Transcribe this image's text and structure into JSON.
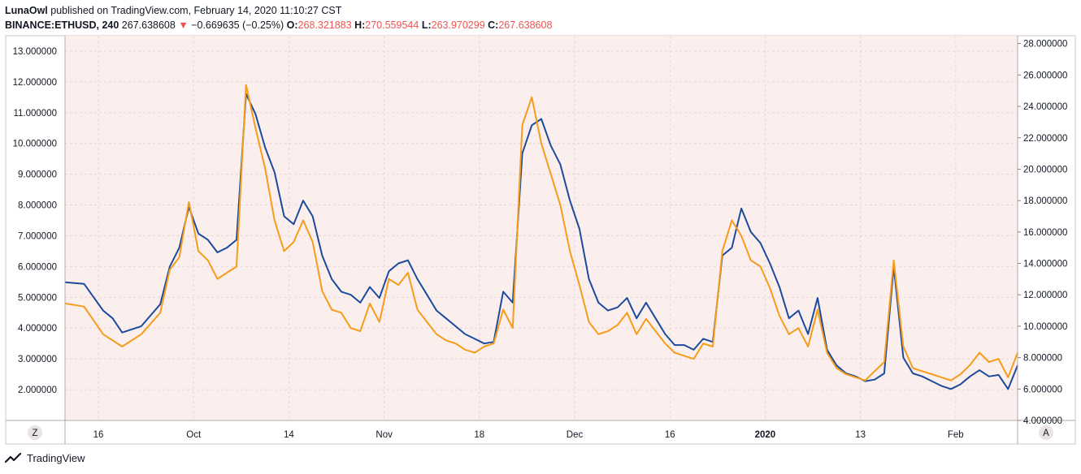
{
  "header": {
    "publisher": "LunaOwl",
    "published_text": "published on TradingView.com, February 14, 2020 11:10:27 CST",
    "symbol": "BINANCE:ETHUSD, 240",
    "last": "267.638608",
    "change_arrow": "▼",
    "change": "−0.669635 (−0.25%)",
    "o_label": "O:",
    "o": "268.321883",
    "h_label": "H:",
    "h": "270.559544",
    "l_label": "L:",
    "l": "263.970299",
    "c_label": "C:",
    "c": "267.638608"
  },
  "footer": {
    "brand": "TradingView"
  },
  "corner": {
    "left": "Z",
    "right": "A"
  },
  "colors": {
    "background": "#fbefee",
    "blue_series": "#1c4a9c",
    "orange_series": "#f59c1a",
    "grid": "#e8d6d6",
    "change_red": "#ef5350"
  },
  "chart_data": {
    "type": "line",
    "title": "",
    "xlabel": "",
    "ylabel": "",
    "x_ticks": [
      "16",
      "Oct",
      "14",
      "Nov",
      "18",
      "Dec",
      "16",
      "2020",
      "13",
      "Feb"
    ],
    "x_ticks_bold": [
      "2020"
    ],
    "left_axis": {
      "ylim": [
        1.0,
        13.5
      ],
      "ticks": [
        "2.000000",
        "3.000000",
        "4.000000",
        "5.000000",
        "6.000000",
        "7.000000",
        "8.000000",
        "9.000000",
        "10.000000",
        "11.000000",
        "12.000000",
        "13.000000"
      ]
    },
    "right_axis": {
      "ylim": [
        4.0,
        28.5
      ],
      "ticks": [
        "4.000000",
        "6.000000",
        "8.000000",
        "10.000000",
        "12.000000",
        "14.000000",
        "16.000000",
        "18.000000",
        "20.000000",
        "22.000000",
        "24.000000",
        "26.000000",
        "28.000000"
      ]
    },
    "grid": true,
    "x_range": [
      0,
      100
    ],
    "series": [
      {
        "axis": "right",
        "color": "#1c4a9c",
        "points": [
          [
            0,
            12.8
          ],
          [
            2,
            12.7
          ],
          [
            4,
            11.0
          ],
          [
            5,
            10.5
          ],
          [
            6,
            9.6
          ],
          [
            8,
            10.0
          ],
          [
            10,
            11.4
          ],
          [
            11,
            13.8
          ],
          [
            12,
            15.0
          ],
          [
            13,
            17.6
          ],
          [
            14,
            15.9
          ],
          [
            15,
            15.5
          ],
          [
            16,
            14.7
          ],
          [
            17,
            15.0
          ],
          [
            18,
            15.5
          ],
          [
            19,
            24.8
          ],
          [
            20,
            23.5
          ],
          [
            21,
            21.4
          ],
          [
            22,
            19.8
          ],
          [
            23,
            17.0
          ],
          [
            24,
            16.5
          ],
          [
            25,
            18.0
          ],
          [
            26,
            17.0
          ],
          [
            27,
            14.5
          ],
          [
            28,
            13.0
          ],
          [
            29,
            12.2
          ],
          [
            30,
            12.0
          ],
          [
            31,
            11.5
          ],
          [
            32,
            12.5
          ],
          [
            33,
            11.8
          ],
          [
            34,
            13.5
          ],
          [
            35,
            14.0
          ],
          [
            36,
            14.2
          ],
          [
            37,
            13.0
          ],
          [
            38,
            12.0
          ],
          [
            39,
            11.0
          ],
          [
            40,
            10.5
          ],
          [
            41,
            10.0
          ],
          [
            42,
            9.5
          ],
          [
            43,
            9.2
          ],
          [
            44,
            8.9
          ],
          [
            45,
            9.0
          ],
          [
            46,
            12.2
          ],
          [
            47,
            11.5
          ],
          [
            48,
            21.0
          ],
          [
            49,
            22.8
          ],
          [
            50,
            23.2
          ],
          [
            51,
            21.5
          ],
          [
            52,
            20.3
          ],
          [
            53,
            18.0
          ],
          [
            54,
            16.2
          ],
          [
            55,
            13.0
          ],
          [
            56,
            11.5
          ],
          [
            57,
            11.0
          ],
          [
            58,
            11.2
          ],
          [
            59,
            11.8
          ],
          [
            60,
            10.5
          ],
          [
            61,
            11.5
          ],
          [
            62,
            10.5
          ],
          [
            63,
            9.5
          ],
          [
            64,
            8.8
          ],
          [
            65,
            8.8
          ],
          [
            66,
            8.5
          ],
          [
            67,
            9.2
          ],
          [
            68,
            9.0
          ],
          [
            69,
            14.5
          ],
          [
            70,
            15.0
          ],
          [
            71,
            17.5
          ],
          [
            72,
            16.0
          ],
          [
            73,
            15.3
          ],
          [
            74,
            14.0
          ],
          [
            75,
            12.5
          ],
          [
            76,
            10.5
          ],
          [
            77,
            11.0
          ],
          [
            78,
            9.5
          ],
          [
            79,
            11.8
          ],
          [
            80,
            8.5
          ],
          [
            81,
            7.5
          ],
          [
            82,
            7.0
          ],
          [
            83,
            6.8
          ],
          [
            84,
            6.5
          ],
          [
            85,
            6.6
          ],
          [
            86,
            7.0
          ],
          [
            87,
            13.8
          ],
          [
            88,
            8.0
          ],
          [
            89,
            7.0
          ],
          [
            90,
            6.8
          ],
          [
            91,
            6.5
          ],
          [
            92,
            6.2
          ],
          [
            93,
            6.0
          ],
          [
            94,
            6.3
          ],
          [
            95,
            6.8
          ],
          [
            96,
            7.2
          ],
          [
            97,
            6.8
          ],
          [
            98,
            6.9
          ],
          [
            99,
            6.0
          ],
          [
            100,
            7.5
          ]
        ]
      },
      {
        "axis": "left",
        "color": "#f59c1a",
        "points": [
          [
            0,
            4.8
          ],
          [
            2,
            4.7
          ],
          [
            4,
            3.8
          ],
          [
            5,
            3.6
          ],
          [
            6,
            3.4
          ],
          [
            8,
            3.8
          ],
          [
            10,
            4.5
          ],
          [
            11,
            5.9
          ],
          [
            12,
            6.3
          ],
          [
            13,
            8.1
          ],
          [
            14,
            6.5
          ],
          [
            15,
            6.2
          ],
          [
            16,
            5.6
          ],
          [
            17,
            5.8
          ],
          [
            18,
            6.0
          ],
          [
            19,
            11.9
          ],
          [
            20,
            10.5
          ],
          [
            21,
            9.2
          ],
          [
            22,
            7.5
          ],
          [
            23,
            6.5
          ],
          [
            24,
            6.8
          ],
          [
            25,
            7.5
          ],
          [
            26,
            6.8
          ],
          [
            27,
            5.2
          ],
          [
            28,
            4.6
          ],
          [
            29,
            4.5
          ],
          [
            30,
            4.0
          ],
          [
            31,
            3.9
          ],
          [
            32,
            4.8
          ],
          [
            33,
            4.2
          ],
          [
            34,
            5.6
          ],
          [
            35,
            5.4
          ],
          [
            36,
            5.8
          ],
          [
            37,
            4.6
          ],
          [
            38,
            4.2
          ],
          [
            39,
            3.8
          ],
          [
            40,
            3.6
          ],
          [
            41,
            3.5
          ],
          [
            42,
            3.3
          ],
          [
            43,
            3.2
          ],
          [
            44,
            3.4
          ],
          [
            45,
            3.5
          ],
          [
            46,
            4.6
          ],
          [
            47,
            4.0
          ],
          [
            48,
            10.6
          ],
          [
            49,
            11.5
          ],
          [
            50,
            10.0
          ],
          [
            51,
            9.0
          ],
          [
            52,
            8.0
          ],
          [
            53,
            6.5
          ],
          [
            54,
            5.4
          ],
          [
            55,
            4.2
          ],
          [
            56,
            3.8
          ],
          [
            57,
            3.9
          ],
          [
            58,
            4.1
          ],
          [
            59,
            4.5
          ],
          [
            60,
            3.8
          ],
          [
            61,
            4.3
          ],
          [
            62,
            3.9
          ],
          [
            63,
            3.5
          ],
          [
            64,
            3.2
          ],
          [
            65,
            3.1
          ],
          [
            66,
            3.0
          ],
          [
            67,
            3.5
          ],
          [
            68,
            3.4
          ],
          [
            69,
            6.5
          ],
          [
            70,
            7.5
          ],
          [
            71,
            7.0
          ],
          [
            72,
            6.2
          ],
          [
            73,
            6.0
          ],
          [
            74,
            5.3
          ],
          [
            75,
            4.4
          ],
          [
            76,
            3.8
          ],
          [
            77,
            4.0
          ],
          [
            78,
            3.4
          ],
          [
            79,
            4.6
          ],
          [
            80,
            3.2
          ],
          [
            81,
            2.7
          ],
          [
            82,
            2.5
          ],
          [
            83,
            2.4
          ],
          [
            84,
            2.3
          ],
          [
            85,
            2.6
          ],
          [
            86,
            2.9
          ],
          [
            87,
            6.2
          ],
          [
            88,
            3.4
          ],
          [
            89,
            2.7
          ],
          [
            90,
            2.6
          ],
          [
            91,
            2.5
          ],
          [
            92,
            2.4
          ],
          [
            93,
            2.3
          ],
          [
            94,
            2.5
          ],
          [
            95,
            2.8
          ],
          [
            96,
            3.2
          ],
          [
            97,
            2.9
          ],
          [
            98,
            3.0
          ],
          [
            99,
            2.4
          ],
          [
            100,
            3.2
          ]
        ]
      }
    ]
  }
}
